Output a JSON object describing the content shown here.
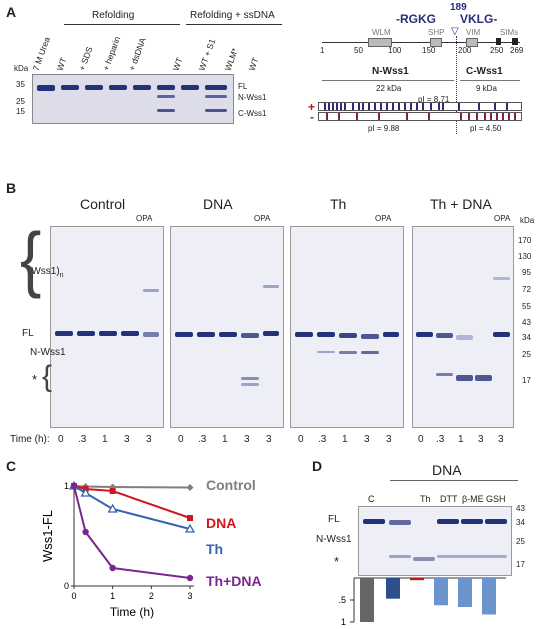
{
  "panels": {
    "a": "A",
    "b": "B",
    "c": "C",
    "d": "D"
  },
  "a": {
    "header_refolding": "Refolding",
    "header_refolding_ssdna": "Refolding + ssDNA",
    "lanes": [
      "7 M Urea",
      "WT",
      "+ SDS",
      "+ heparin",
      "+ dsDNA",
      "WT",
      "WT + S1",
      "WLM*",
      "WT"
    ],
    "kda_label": "kDa",
    "markers": [
      "35",
      "25",
      "15"
    ],
    "band_labels": [
      "FL",
      "N-Wss1",
      "C-Wss1"
    ],
    "seq_left": "-RGKG",
    "seq_right": "VKLG-",
    "site": "189",
    "domains": [
      "WLM",
      "SHP",
      "VIM",
      "SIMs"
    ],
    "ruler_ticks": [
      "1",
      "50",
      "100",
      "150",
      "200",
      "250",
      "269"
    ],
    "n_label": "N-Wss1",
    "c_label": "C-Wss1",
    "n_size": "22 kDa",
    "c_size": "9 kDa",
    "pi_top": "pI = 8.71",
    "pi_n": "pI = 9.88",
    "pi_c": "pI = 4.50",
    "plus": "+",
    "minus": "-"
  },
  "b": {
    "gel_titles": [
      "Control",
      "DNA",
      "Th",
      "Th + DNA"
    ],
    "opa": "OPA",
    "kda_label": "kDa",
    "markers": [
      "170",
      "130",
      "95",
      "72",
      "55",
      "43",
      "34",
      "25",
      "17"
    ],
    "left_labels": {
      "oligo": "(Wss1)",
      "oligo_sub": "n",
      "fl": "FL",
      "nwss1": "N-Wss1",
      "star": "*"
    },
    "time_label": "Time (h):",
    "times": [
      "0",
      ".3",
      "1",
      "3",
      "3"
    ]
  },
  "c": {
    "chart_data": {
      "type": "line",
      "xlabel": "Time (h)",
      "ylabel": "Wss1-FL",
      "x_ticks": [
        "0",
        "1",
        "2",
        "3"
      ],
      "y_ticks": [
        "0",
        "1"
      ],
      "xlim": [
        0,
        3
      ],
      "ylim": [
        0,
        1
      ],
      "x": [
        0,
        0.3,
        1,
        3
      ],
      "series": [
        {
          "name": "Control",
          "color": "#7f7f7f",
          "marker": "diamond",
          "values": [
            1.0,
            0.995,
            0.99,
            0.985
          ]
        },
        {
          "name": "DNA",
          "color": "#d0161d",
          "marker": "square",
          "values": [
            1.0,
            0.97,
            0.95,
            0.68
          ]
        },
        {
          "name": "Th",
          "color": "#3565b0",
          "marker": "triangle",
          "values": [
            1.0,
            0.93,
            0.77,
            0.57
          ]
        },
        {
          "name": "Th+DNA",
          "color": "#7b2690",
          "marker": "circle",
          "values": [
            1.0,
            0.54,
            0.18,
            0.08
          ]
        }
      ]
    }
  },
  "d": {
    "dna_header": "DNA",
    "lanes": [
      "C",
      "",
      "Th",
      "DTT",
      "β-ME",
      "GSH"
    ],
    "kda_markers": [
      "43",
      "34",
      "25",
      "17"
    ],
    "labels": {
      "fl": "FL",
      "nwss1": "N-Wss1",
      "star": "*"
    },
    "chart_data": {
      "type": "bar",
      "categories": [
        "C",
        "DNA",
        "Th",
        "DTT",
        "β-ME",
        "GSH"
      ],
      "values": [
        1.0,
        0.47,
        0.05,
        0.62,
        0.66,
        0.83
      ],
      "colors": [
        "#666666",
        "#2e4f8e",
        "#c0161d",
        "#6b93cc",
        "#6b93cc",
        "#6b93cc"
      ],
      "y_ticks": [
        ".5",
        "1"
      ],
      "ylim": [
        0,
        1
      ]
    }
  }
}
